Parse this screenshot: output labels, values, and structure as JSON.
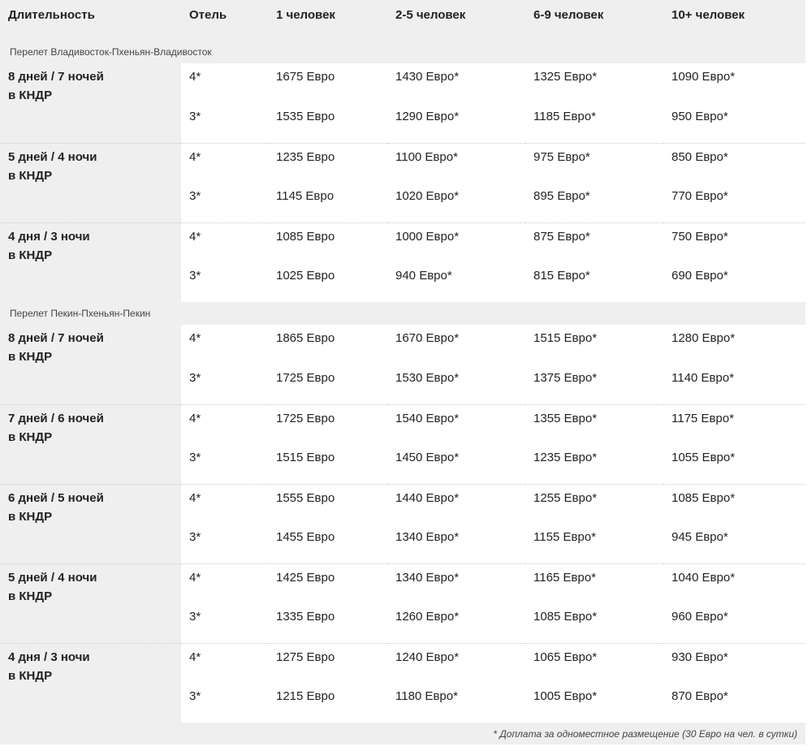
{
  "header": [
    "Длительность",
    "Отель",
    "1 человек",
    "2-5 человек",
    "6-9 человек",
    "10+ человек"
  ],
  "sections": [
    {
      "title": "Перелет Владивосток-Пхеньян-Владивосток",
      "groups": [
        {
          "duration": [
            "8 дней / 7 ночей",
            "в КНДР"
          ],
          "rows": [
            [
              "4*",
              "1675 Евро",
              "1430 Евро*",
              "1325 Евро*",
              "1090 Евро*"
            ],
            [
              "3*",
              "1535 Евро",
              "1290 Евро*",
              "1185 Евро*",
              "950 Евро*"
            ]
          ]
        },
        {
          "duration": [
            "5 дней / 4 ночи",
            "в КНДР"
          ],
          "rows": [
            [
              "4*",
              "1235 Евро",
              "1100 Евро*",
              "975 Евро*",
              "850 Евро*"
            ],
            [
              "3*",
              "1145 Евро",
              "1020 Евро*",
              "895 Евро*",
              "770 Евро*"
            ]
          ]
        },
        {
          "duration": [
            "4 дня / 3 ночи",
            "в КНДР"
          ],
          "rows": [
            [
              "4*",
              "1085 Евро",
              "1000 Евро*",
              "875 Евро*",
              "750 Евро*"
            ],
            [
              "3*",
              "1025 Евро",
              "940 Евро*",
              "815 Евро*",
              "690 Евро*"
            ]
          ]
        }
      ]
    },
    {
      "title": "Перелет Пекин-Пхеньян-Пекин",
      "groups": [
        {
          "duration": [
            "8 дней / 7 ночей",
            "в КНДР"
          ],
          "rows": [
            [
              "4*",
              "1865 Евро",
              "1670 Евро*",
              "1515 Евро*",
              "1280 Евро*"
            ],
            [
              "3*",
              "1725 Евро",
              "1530 Евро*",
              "1375 Евро*",
              "1140 Евро*"
            ]
          ]
        },
        {
          "duration": [
            "7 дней / 6 ночей",
            "в КНДР"
          ],
          "rows": [
            [
              "4*",
              "1725 Евро",
              "1540 Евро*",
              "1355 Евро*",
              "1175 Евро*"
            ],
            [
              "3*",
              "1515 Евро",
              "1450 Евро*",
              "1235 Евро*",
              "1055 Евро*"
            ]
          ]
        },
        {
          "duration": [
            "6 дней / 5 ночей",
            "в КНДР"
          ],
          "rows": [
            [
              "4*",
              "1555 Евро",
              "1440 Евро*",
              "1255 Евро*",
              "1085 Евро*"
            ],
            [
              "3*",
              "1455 Евро",
              "1340 Евро*",
              "1155 Евро*",
              "945 Евро*"
            ]
          ]
        },
        {
          "duration": [
            "5 дней / 4 ночи",
            "в КНДР"
          ],
          "rows": [
            [
              "4*",
              "1425 Евро",
              "1340 Евро*",
              "1165 Евро*",
              "1040 Евро*"
            ],
            [
              "3*",
              "1335 Евро",
              "1260 Евро*",
              "1085 Евро*",
              "960 Евро*"
            ]
          ]
        },
        {
          "duration": [
            "4 дня / 3 ночи",
            "в КНДР"
          ],
          "rows": [
            [
              "4*",
              "1275 Евро",
              "1240 Евро*",
              "1065 Евро*",
              "930 Евро*"
            ],
            [
              "3*",
              "1215 Евро",
              "1180 Евро*",
              "1005 Евро*",
              "870 Евро*"
            ]
          ]
        }
      ]
    }
  ],
  "footnote": "* Доплата за одноместное размещение (30 Евро на чел. в сутки)"
}
